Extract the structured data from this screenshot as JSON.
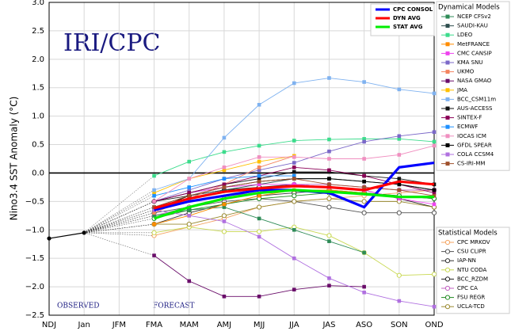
{
  "chart_data": {
    "type": "line",
    "title": "IRI/CPC",
    "ylabel": "Nino3.4 SST Anomaly (°C)",
    "annotations": [
      "OBSERVED",
      "FORECAST"
    ],
    "categories": [
      "NDJ",
      "Jan",
      "JFM",
      "FMA",
      "MAM",
      "AMJ",
      "MJJ",
      "JJA",
      "JAS",
      "ASO",
      "SON",
      "OND"
    ],
    "ylim": [
      -2.5,
      3.0
    ],
    "yticks": [
      {
        "value": -2.5,
        "label": "−2.5"
      },
      {
        "value": -2,
        "label": "−2.0"
      },
      {
        "value": -1.5,
        "label": "−1.5"
      },
      {
        "value": -1,
        "label": "−1.0"
      },
      {
        "value": -0.5,
        "label": "−0.5"
      },
      {
        "value": 0,
        "label": "0.0"
      },
      0.5,
      {
        "value": 1,
        "label": "1.0"
      },
      1.5,
      {
        "value": 2,
        "label": "2.0"
      },
      2.5,
      {
        "value": 3,
        "label": "3.0"
      }
    ],
    "grid": true,
    "observed": {
      "color": "#000000",
      "values": [
        -1.15,
        -1.05,
        null,
        null,
        null,
        null,
        null,
        null,
        null,
        null,
        null,
        null
      ]
    },
    "series": [
      {
        "name": "CPC CONSOL",
        "color": "#0000ff",
        "values": [
          null,
          null,
          null,
          -0.65,
          -0.5,
          -0.4,
          -0.3,
          -0.3,
          -0.35,
          -0.6,
          0.1,
          0.18
        ]
      },
      {
        "name": "DYN AVG",
        "color": "#ff0000",
        "values": [
          null,
          null,
          null,
          -0.62,
          -0.45,
          -0.33,
          -0.27,
          -0.23,
          -0.25,
          -0.3,
          -0.15,
          -0.2
        ]
      },
      {
        "name": "STAT AVG",
        "color": "#00ee00",
        "values": [
          null,
          null,
          null,
          -0.8,
          -0.6,
          -0.45,
          -0.35,
          -0.3,
          -0.33,
          -0.37,
          -0.42,
          -0.42
        ]
      }
    ],
    "dynamical": {
      "title": "Dynamical Models",
      "series": [
        {
          "name": "NCEP CFSv2",
          "color": "#2e8b57",
          "values": [
            null,
            null,
            null,
            -0.75,
            -0.65,
            -0.6,
            -0.8,
            -1.0,
            -1.2,
            -1.4,
            null,
            null
          ]
        },
        {
          "name": "SAUDI-KAU",
          "color": "#2f4f4f",
          "values": [
            null,
            null,
            null,
            -0.6,
            -0.4,
            -0.3,
            -0.2,
            -0.1,
            -0.1,
            -0.15,
            -0.2,
            -0.3
          ]
        },
        {
          "name": "LDEO",
          "color": "#3cdc8c",
          "values": [
            null,
            null,
            null,
            -0.05,
            0.2,
            0.37,
            0.48,
            0.57,
            0.59,
            0.6,
            0.6,
            0.55
          ]
        },
        {
          "name": "MetFRANCE",
          "color": "#ff8c00",
          "values": [
            null,
            null,
            null,
            -0.9,
            -0.75,
            -0.55,
            -0.4,
            -0.3,
            -0.3,
            -0.35,
            null,
            null
          ]
        },
        {
          "name": "CMC CANSIP",
          "color": "#ee44ee",
          "values": [
            null,
            null,
            null,
            -0.5,
            -0.35,
            -0.25,
            -0.2,
            -0.2,
            -0.25,
            -0.3,
            -0.45,
            -0.55
          ]
        },
        {
          "name": "KMA SNU",
          "color": "#7b68c8",
          "values": [
            null,
            null,
            null,
            -0.5,
            -0.3,
            -0.1,
            0.05,
            0.18,
            0.38,
            0.55,
            0.65,
            0.72
          ]
        },
        {
          "name": "UKMO",
          "color": "#f4845f",
          "values": [
            null,
            null,
            null,
            -0.7,
            -0.45,
            -0.2,
            0.1,
            0.3,
            null,
            null,
            null,
            null
          ]
        },
        {
          "name": "NASA GMAO",
          "color": "#6a0d6a",
          "values": [
            null,
            null,
            null,
            -1.45,
            -1.9,
            -2.17,
            -2.17,
            -2.05,
            -1.98,
            -2.0,
            null,
            null
          ]
        },
        {
          "name": "JMA",
          "color": "#ffc000",
          "values": [
            null,
            null,
            null,
            -0.35,
            -0.1,
            0.05,
            0.2,
            0.3,
            null,
            null,
            null,
            null
          ]
        },
        {
          "name": "BCC_CSM11m",
          "color": "#7fb2f0",
          "values": [
            null,
            null,
            null,
            -0.3,
            -0.1,
            0.62,
            1.2,
            1.58,
            1.67,
            1.6,
            1.47,
            1.4
          ]
        },
        {
          "name": "AUS-ACCESS",
          "color": "#111111",
          "values": [
            null,
            null,
            null,
            -0.5,
            -0.35,
            -0.2,
            -0.1,
            0.02,
            0.02,
            -0.05,
            -0.1,
            -0.2
          ]
        },
        {
          "name": "SINTEX-F",
          "color": "#8b0057",
          "values": [
            null,
            null,
            null,
            -0.5,
            -0.35,
            -0.2,
            -0.05,
            0.1,
            0.05,
            -0.05,
            -0.2,
            -0.35
          ]
        },
        {
          "name": "ECMWF",
          "color": "#1e90ff",
          "values": [
            null,
            null,
            null,
            -0.4,
            -0.25,
            -0.1,
            -0.05,
            -0.05,
            null,
            null,
            null,
            null
          ]
        },
        {
          "name": "IOCAS ICM",
          "color": "#f08fc0",
          "values": [
            null,
            null,
            null,
            -0.5,
            -0.1,
            0.1,
            0.28,
            0.28,
            0.25,
            0.25,
            0.32,
            0.48
          ]
        },
        {
          "name": "GFDL SPEAR",
          "color": "#000000",
          "values": [
            null,
            null,
            null,
            -0.65,
            -0.4,
            -0.25,
            -0.15,
            -0.1,
            -0.1,
            -0.15,
            -0.2,
            -0.3
          ]
        },
        {
          "name": "COLA CCSM4",
          "color": "#b070e0",
          "values": [
            null,
            null,
            null,
            -0.65,
            -0.75,
            -0.85,
            -1.12,
            -1.5,
            -1.85,
            -2.1,
            -2.25,
            -2.35
          ]
        },
        {
          "name": "CS-IRI-MM",
          "color": "#a0522d",
          "values": [
            null,
            null,
            null,
            -0.6,
            -0.4,
            -0.25,
            -0.15,
            -0.1,
            -0.2,
            -0.25,
            -0.3,
            -0.4
          ]
        }
      ]
    },
    "statistical": {
      "title": "Statistical Models",
      "series": [
        {
          "name": "CPC MRKOV",
          "color": "#f4a460",
          "values": [
            null,
            null,
            null,
            -1.1,
            -0.95,
            -0.8,
            -0.6,
            -0.5,
            -0.45,
            -0.4,
            -0.35,
            -0.3
          ]
        },
        {
          "name": "CSU CLIPR",
          "color": "#555555",
          "values": [
            null,
            null,
            null,
            -0.7,
            -0.6,
            -0.5,
            -0.45,
            -0.5,
            -0.6,
            -0.7,
            -0.7,
            -0.7
          ]
        },
        {
          "name": "IAP-NN",
          "color": "#333333",
          "values": [
            null,
            null,
            null,
            -0.9,
            -0.7,
            -0.55,
            -0.4,
            -0.35,
            -0.3,
            -0.35,
            -0.4,
            -0.45
          ]
        },
        {
          "name": "NTU CODA",
          "color": "#c8d850",
          "values": [
            null,
            null,
            null,
            -1.05,
            -0.95,
            -1.03,
            -1.03,
            -0.95,
            -1.1,
            -1.4,
            -1.8,
            -1.78
          ]
        },
        {
          "name": "BCC_RZDM",
          "color": "#222222",
          "values": [
            null,
            null,
            null,
            -0.5,
            -0.4,
            -0.3,
            -0.25,
            -0.2,
            -0.25,
            -0.3,
            -0.45,
            -0.6
          ]
        },
        {
          "name": "CPC CA",
          "color": "#c060c0",
          "values": [
            null,
            null,
            null,
            -0.75,
            -0.6,
            -0.45,
            -0.3,
            -0.2,
            -0.2,
            -0.25,
            -0.3,
            -0.3
          ]
        },
        {
          "name": "FSU REGR",
          "color": "#228b22",
          "values": [
            null,
            null,
            null,
            -0.8,
            -0.65,
            -0.55,
            -0.45,
            -0.4,
            -0.35,
            -0.35,
            -0.4,
            -0.45
          ]
        },
        {
          "name": "UCLA-TCD",
          "color": "#9a8a30",
          "values": [
            null,
            null,
            null,
            -0.9,
            -0.9,
            -0.75,
            -0.6,
            -0.5,
            -0.45,
            -0.5,
            -0.5,
            -0.6
          ]
        }
      ]
    }
  }
}
